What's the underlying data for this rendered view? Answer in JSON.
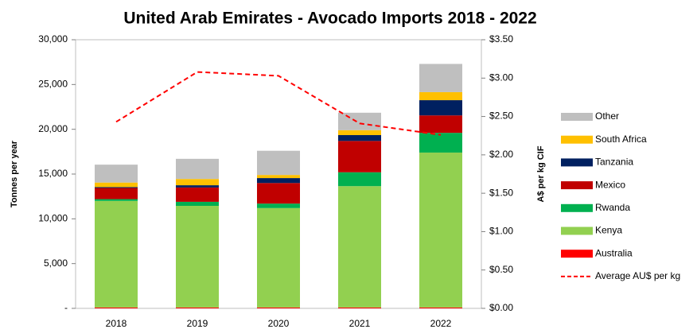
{
  "chart_data": {
    "type": "stacked-bar-line",
    "title": "United Arab Emirates - Avocado Imports 2018 - 2022",
    "y_label": "Tonnes per year",
    "y2_label": "A$ per kg CIF",
    "categories": [
      "2018",
      "2019",
      "2020",
      "2021",
      "2022"
    ],
    "series": [
      {
        "name": "Australia",
        "color": "#ff0000",
        "values": [
          100,
          100,
          100,
          100,
          100
        ]
      },
      {
        "name": "Kenya",
        "color": "#92d050",
        "values": [
          11900,
          11350,
          11100,
          13550,
          17300
        ]
      },
      {
        "name": "Rwanda",
        "color": "#00b050",
        "values": [
          200,
          450,
          500,
          1550,
          2200
        ]
      },
      {
        "name": "Mexico",
        "color": "#c00000",
        "values": [
          1250,
          1600,
          2300,
          3500,
          1950
        ]
      },
      {
        "name": "Tanzania",
        "color": "#002060",
        "values": [
          100,
          250,
          550,
          650,
          1700
        ]
      },
      {
        "name": "South Africa",
        "color": "#ffc000",
        "values": [
          500,
          700,
          350,
          550,
          900
        ]
      },
      {
        "name": "Other",
        "color": "#bfbfbf",
        "values": [
          2000,
          2250,
          2700,
          1950,
          3150
        ]
      },
      {
        "name": "Average AU$ per kg",
        "color": "#ff0000",
        "axis": "y2",
        "values": [
          2.43,
          3.08,
          3.03,
          2.41,
          2.26
        ]
      }
    ],
    "ylim": [
      0,
      30000
    ],
    "yticks": [
      {
        "value": 0,
        "label": "-"
      },
      {
        "value": 5000,
        "label": "5,000"
      },
      {
        "value": 10000,
        "label": "10,000"
      },
      {
        "value": 15000,
        "label": "15,000"
      },
      {
        "value": 20000,
        "label": "20,000"
      },
      {
        "value": 25000,
        "label": "25,000"
      },
      {
        "value": 30000,
        "label": "30,000"
      }
    ],
    "y2lim": [
      0,
      3.5
    ],
    "y2ticks": [
      {
        "value": 0,
        "label": "$0.00"
      },
      {
        "value": 0.5,
        "label": "$0.50"
      },
      {
        "value": 1,
        "label": "$1.00"
      },
      {
        "value": 1.5,
        "label": "$1.50"
      },
      {
        "value": 2,
        "label": "$2.00"
      },
      {
        "value": 2.5,
        "label": "$2.50"
      },
      {
        "value": 3,
        "label": "$3.00"
      },
      {
        "value": 3.5,
        "label": "$3.50"
      }
    ]
  }
}
